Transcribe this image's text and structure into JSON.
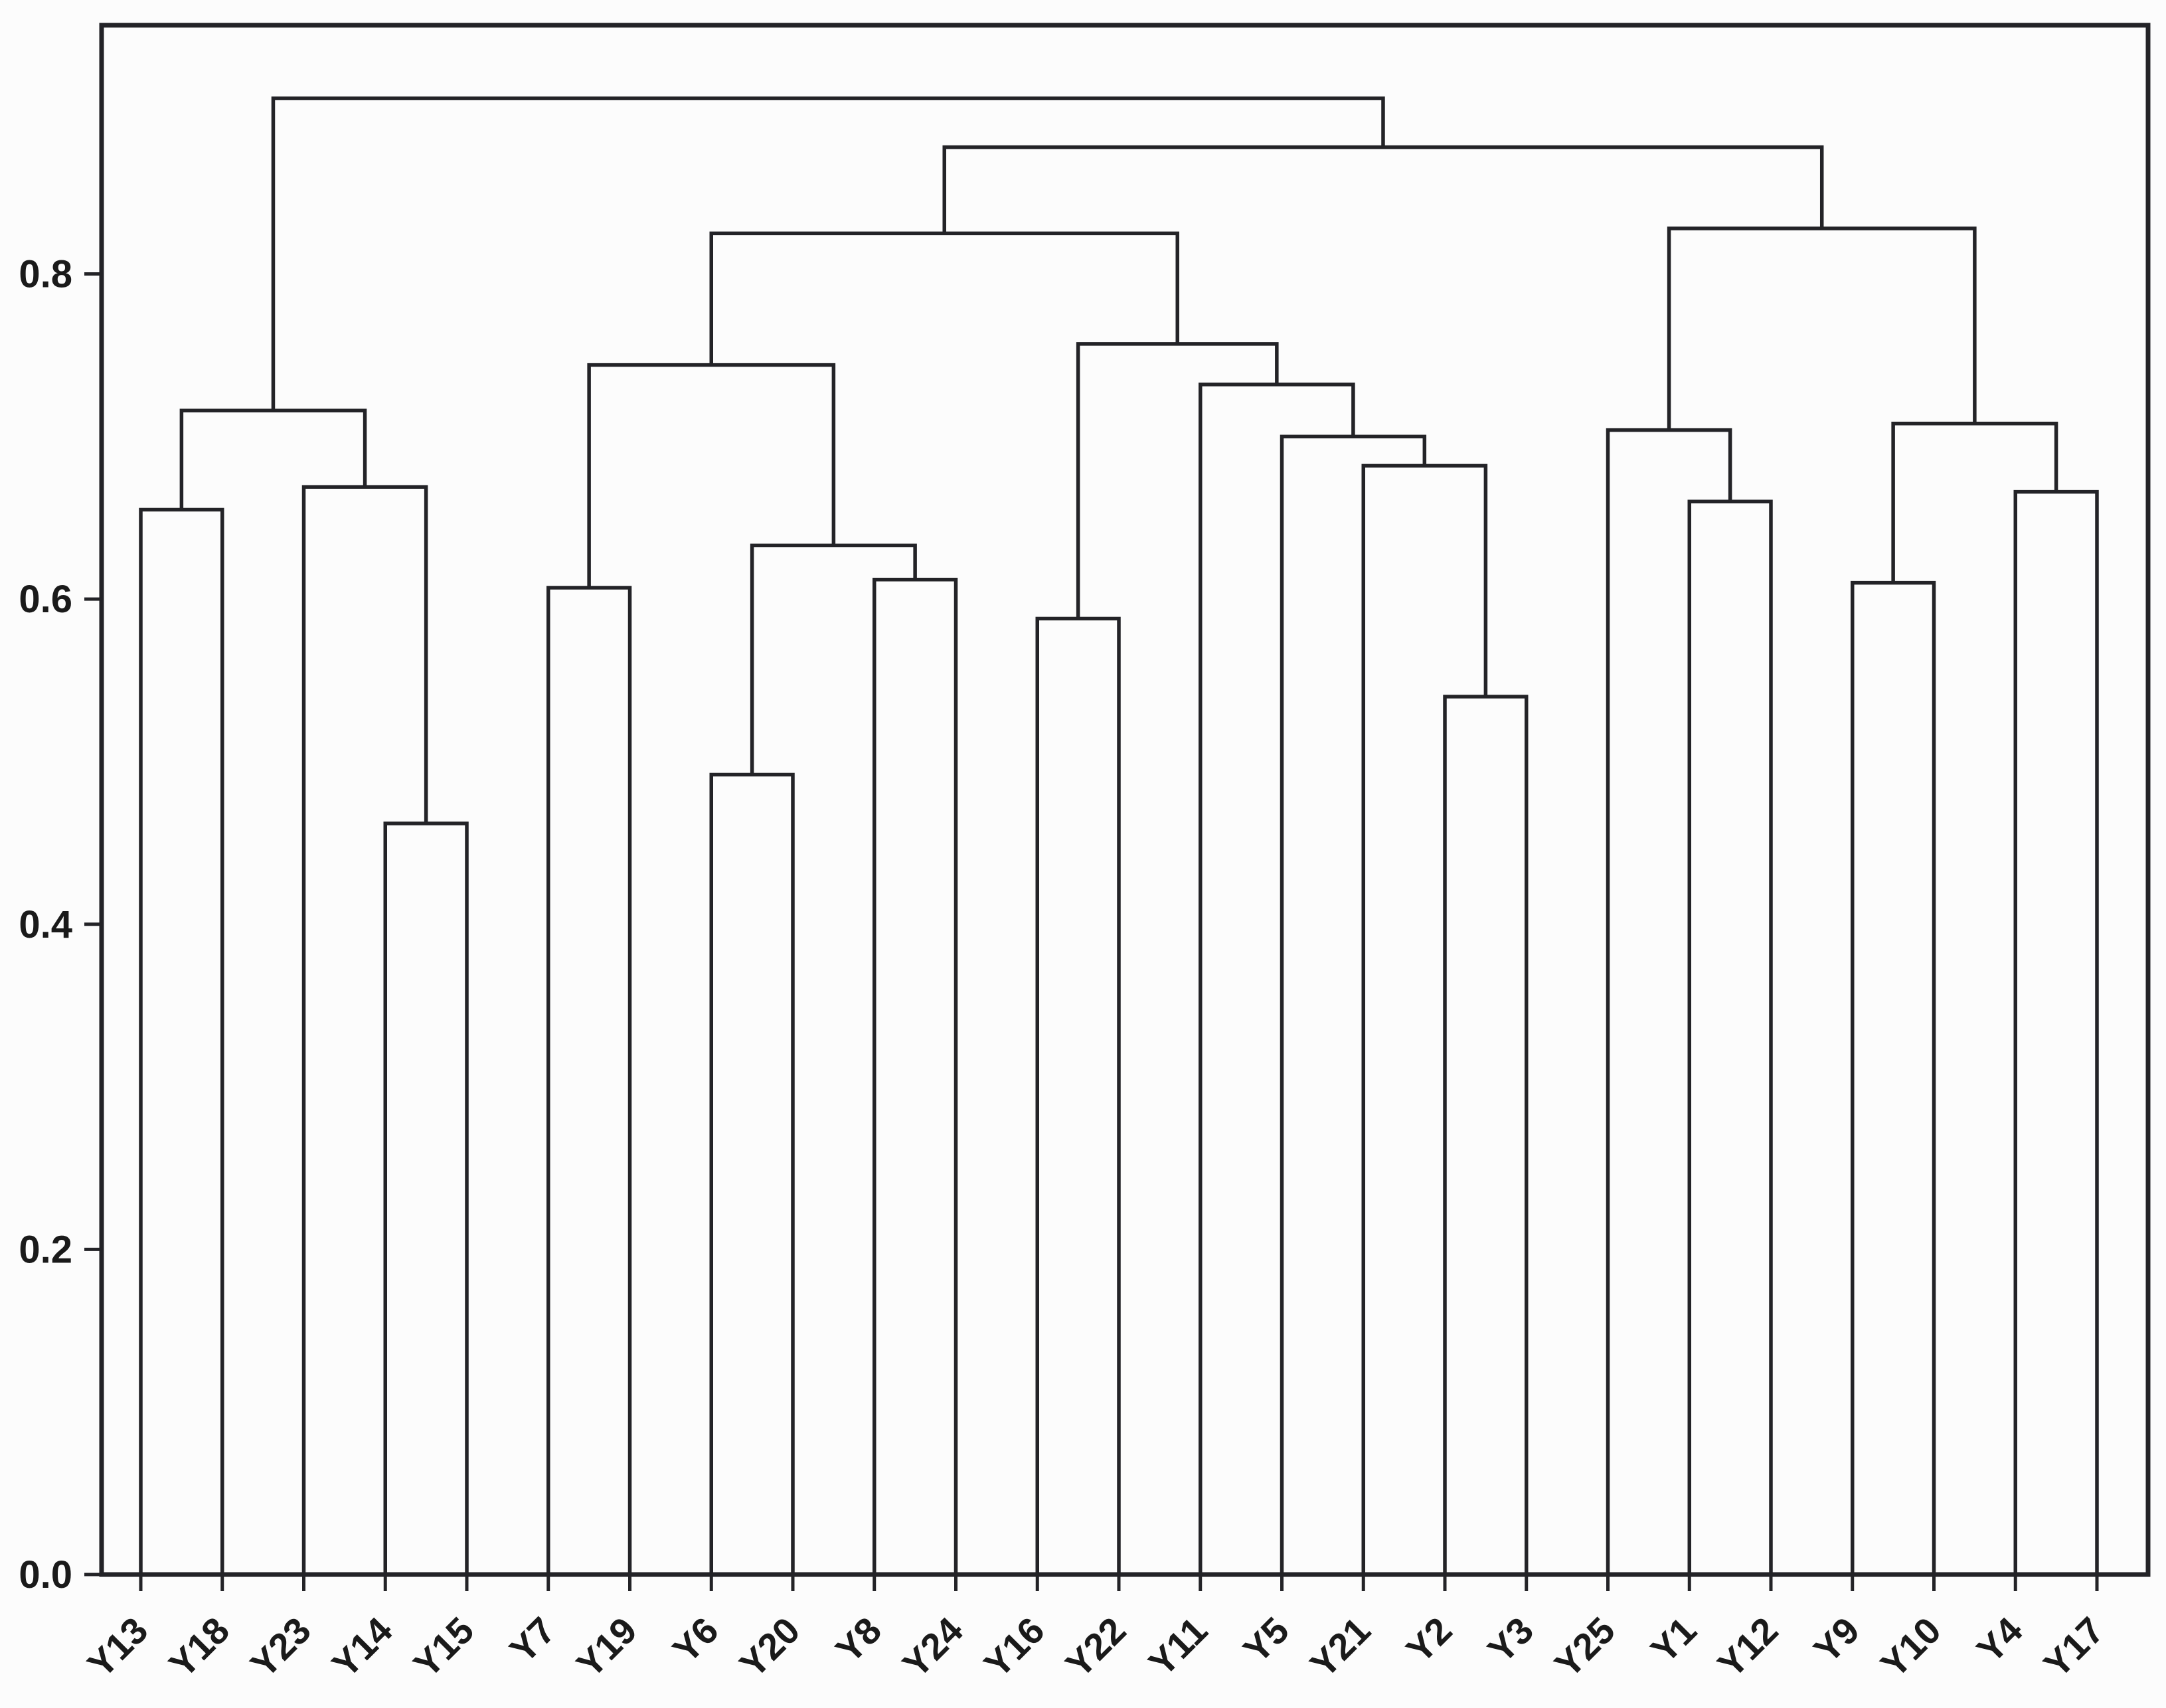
{
  "chart_data": {
    "type": "dendrogram",
    "title": "",
    "xlabel": "",
    "ylabel": "",
    "grid": false,
    "legend": null,
    "background_color": "#fcfcfc",
    "line_color": "#232327",
    "text_color": "#1a1a1a",
    "ylim": [
      0.0,
      0.953
    ],
    "yticks": [
      "0.0",
      "0.2",
      "0.4",
      "0.6",
      "0.8"
    ],
    "ytick_values": [
      0.0,
      0.2,
      0.4,
      0.6,
      0.8
    ],
    "leaves": [
      "Y13",
      "Y18",
      "Y23",
      "Y14",
      "Y15",
      "Y7",
      "Y19",
      "Y6",
      "Y20",
      "Y8",
      "Y24",
      "Y16",
      "Y22",
      "Y11",
      "Y5",
      "Y21",
      "Y2",
      "Y3",
      "Y25",
      "Y1",
      "Y12",
      "Y9",
      "Y10",
      "Y4",
      "Y17"
    ],
    "merges": [
      {
        "id": "n1",
        "a": "Y13",
        "b": "Y18",
        "height": 0.655
      },
      {
        "id": "n2",
        "a": "Y14",
        "b": "Y15",
        "height": 0.462
      },
      {
        "id": "n3",
        "a": "Y23",
        "b": "n2",
        "height": 0.669
      },
      {
        "id": "n4",
        "a": "n1",
        "b": "n3",
        "height": 0.716
      },
      {
        "id": "n5",
        "a": "Y7",
        "b": "Y19",
        "height": 0.607
      },
      {
        "id": "n6",
        "a": "Y6",
        "b": "Y20",
        "height": 0.492
      },
      {
        "id": "n7",
        "a": "Y8",
        "b": "Y24",
        "height": 0.612
      },
      {
        "id": "n8",
        "a": "n6",
        "b": "n7",
        "height": 0.633
      },
      {
        "id": "n9",
        "a": "n5",
        "b": "n8",
        "height": 0.744
      },
      {
        "id": "n10",
        "a": "Y16",
        "b": "Y22",
        "height": 0.588
      },
      {
        "id": "n11",
        "a": "Y2",
        "b": "Y3",
        "height": 0.54
      },
      {
        "id": "n12",
        "a": "Y21",
        "b": "n11",
        "height": 0.682
      },
      {
        "id": "n13",
        "a": "Y5",
        "b": "n12",
        "height": 0.7
      },
      {
        "id": "n14",
        "a": "Y11",
        "b": "n13",
        "height": 0.732
      },
      {
        "id": "n15",
        "a": "n10",
        "b": "n14",
        "height": 0.757
      },
      {
        "id": "n16",
        "a": "n9",
        "b": "n15",
        "height": 0.825
      },
      {
        "id": "n17",
        "a": "Y1",
        "b": "Y12",
        "height": 0.66
      },
      {
        "id": "n18",
        "a": "Y25",
        "b": "n17",
        "height": 0.704
      },
      {
        "id": "n19",
        "a": "Y9",
        "b": "Y10",
        "height": 0.61
      },
      {
        "id": "n20",
        "a": "Y4",
        "b": "Y17",
        "height": 0.666
      },
      {
        "id": "n21",
        "a": "n19",
        "b": "n20",
        "height": 0.708
      },
      {
        "id": "n22",
        "a": "n18",
        "b": "n21",
        "height": 0.828
      },
      {
        "id": "n23",
        "a": "n16",
        "b": "n22",
        "height": 0.878
      },
      {
        "id": "n24",
        "a": "n4",
        "b": "n23",
        "height": 0.908
      }
    ]
  }
}
